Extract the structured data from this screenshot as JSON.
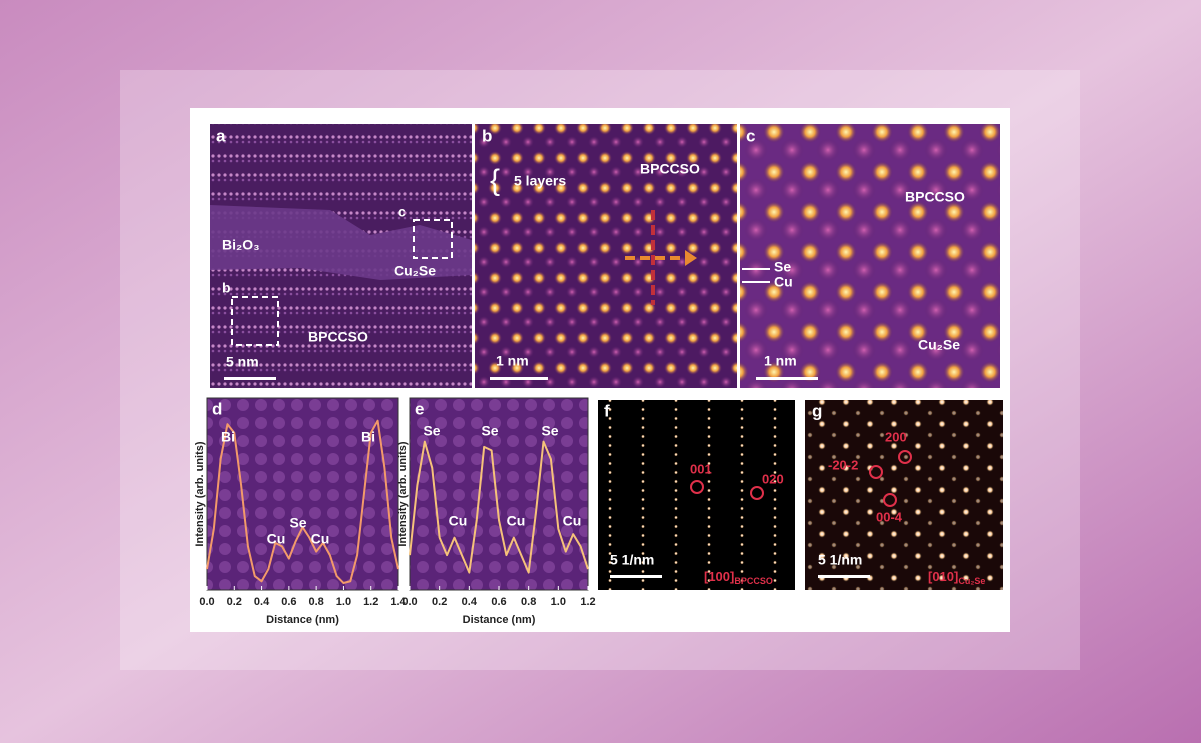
{
  "panels": {
    "a": {
      "label": "a",
      "phase1": "Bi₂O₃",
      "phase2": "Cu₂Se",
      "phase3": "BPCCSO",
      "box_b": "b",
      "box_c": "c",
      "scale": "5 nm"
    },
    "b": {
      "label": "b",
      "layers": "5 layers",
      "phase": "BPCCSO",
      "scale": "1 nm"
    },
    "c": {
      "label": "c",
      "phase1": "BPCCSO",
      "atom1": "Se",
      "atom2": "Cu",
      "phase2": "Cu₂Se",
      "scale": "1 nm"
    },
    "f": {
      "label": "f",
      "spot1": "001",
      "spot2": "020",
      "scale": "5 1/nm",
      "zone": "[100]",
      "zone_sub": "BPCCSO"
    },
    "g": {
      "label": "g",
      "spot1": "200",
      "spot2": "-20-2",
      "spot3": "00-4",
      "scale": "5 1/nm",
      "zone": "[010]",
      "zone_sub": "Cu₂Se"
    }
  },
  "chart_data": [
    {
      "type": "line",
      "label": "d",
      "x_label": "Distance (nm)",
      "y_label": "Intensity (arb. units)",
      "color": "#f39a6a",
      "x": [
        0,
        0.05,
        0.1,
        0.15,
        0.2,
        0.25,
        0.3,
        0.35,
        0.4,
        0.45,
        0.5,
        0.55,
        0.6,
        0.65,
        0.7,
        0.75,
        0.8,
        0.85,
        0.9,
        0.95,
        1.0,
        1.05,
        1.1,
        1.15,
        1.2,
        1.25,
        1.3,
        1.35,
        1.4
      ],
      "values": [
        0.12,
        0.35,
        0.75,
        0.95,
        0.9,
        0.6,
        0.25,
        0.08,
        0.05,
        0.12,
        0.27,
        0.25,
        0.18,
        0.28,
        0.36,
        0.3,
        0.22,
        0.27,
        0.2,
        0.08,
        0.04,
        0.05,
        0.2,
        0.55,
        0.9,
        0.97,
        0.7,
        0.3,
        0.12
      ],
      "annotations": [
        "Bi",
        "Cu",
        "Se",
        "Cu",
        "Bi"
      ],
      "xlim": [
        0,
        1.4
      ],
      "ylim": [
        0,
        1.1
      ],
      "xticks": [
        {
          "value": 0,
          "label": "0.0"
        },
        0.2,
        0.4,
        0.6,
        0.8,
        {
          "value": 1,
          "label": "1.0"
        },
        1.2,
        1.4
      ]
    },
    {
      "type": "line",
      "label": "e",
      "x_label": "Distance (nm)",
      "y_label": "Intensity (arb. units)",
      "color": "#f6c27a",
      "x": [
        0,
        0.05,
        0.1,
        0.15,
        0.2,
        0.25,
        0.3,
        0.35,
        0.4,
        0.45,
        0.5,
        0.55,
        0.6,
        0.65,
        0.7,
        0.75,
        0.8,
        0.85,
        0.9,
        0.95,
        1.0,
        1.05,
        1.1,
        1.15,
        1.2
      ],
      "values": [
        0.2,
        0.6,
        0.85,
        0.7,
        0.3,
        0.2,
        0.3,
        0.2,
        0.1,
        0.4,
        0.82,
        0.8,
        0.4,
        0.2,
        0.3,
        0.2,
        0.1,
        0.45,
        0.85,
        0.75,
        0.35,
        0.22,
        0.32,
        0.25,
        0.12
      ],
      "annotations": [
        "Se",
        "Cu",
        "Se",
        "Cu",
        "Se",
        "Cu"
      ],
      "xlim": [
        0,
        1.2
      ],
      "ylim": [
        0,
        1.1
      ],
      "xticks": [
        {
          "value": 0,
          "label": "0.0"
        },
        0.2,
        0.4,
        0.6,
        0.8,
        {
          "value": 1,
          "label": "1.0"
        },
        1.2
      ]
    }
  ]
}
